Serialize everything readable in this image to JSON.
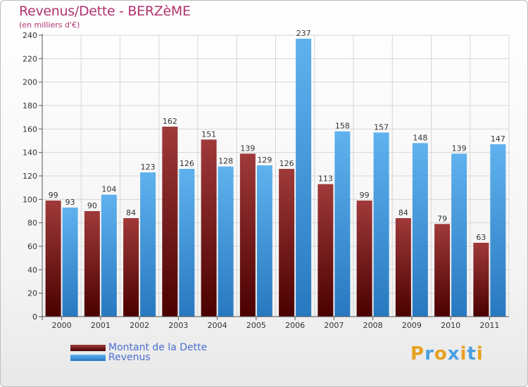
{
  "chart_data": {
    "type": "bar",
    "title": "Revenus/Dette - BERZèME",
    "subtitle": "(en milliers d'€)",
    "categories": [
      "2000",
      "2001",
      "2002",
      "2003",
      "2004",
      "2005",
      "2006",
      "2007",
      "2008",
      "2009",
      "2010",
      "2011"
    ],
    "series": [
      {
        "name": "Montant de la Dette",
        "values": [
          99,
          90,
          84,
          162,
          151,
          139,
          126,
          113,
          99,
          84,
          79,
          63
        ],
        "color": "#7a1a1a"
      },
      {
        "name": "Revenus",
        "values": [
          93,
          104,
          123,
          126,
          128,
          129,
          237,
          158,
          157,
          148,
          139,
          147
        ],
        "color": "#4aa3e6"
      }
    ],
    "ylim": [
      0,
      240
    ],
    "yticks": [
      0,
      20,
      40,
      60,
      80,
      100,
      120,
      140,
      160,
      180,
      200,
      220,
      240
    ],
    "grid": true,
    "legend_position": "bottom-left"
  },
  "logo": {
    "letters": [
      "P",
      "r",
      "o",
      "x",
      "i",
      "t",
      "i"
    ],
    "colors": [
      "#e8a020",
      "#4a9fe0",
      "#e8a020",
      "#4a9fe0",
      "#e8a020",
      "#4a9fe0",
      "#e8a020"
    ]
  }
}
